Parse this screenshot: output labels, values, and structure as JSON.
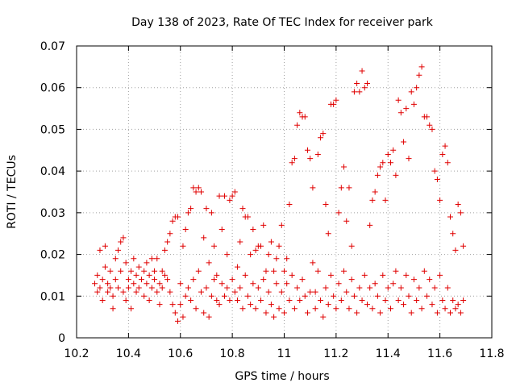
{
  "chart_data": {
    "type": "scatter",
    "title": "Day 138 of 2023, Rate Of TEC Index for receiver park",
    "xlabel": "GPS time / hours",
    "ylabel": "ROTI / TECUs",
    "xlim": [
      10.2,
      11.8
    ],
    "ylim": [
      0,
      0.07
    ],
    "xticks": [
      10.2,
      10.4,
      10.6,
      10.8,
      11.0,
      11.2,
      11.4,
      11.6,
      11.8
    ],
    "xtick_labels": [
      "10.2",
      "10.4",
      "10.6",
      "10.8",
      "11",
      "11.2",
      "11.4",
      "11.6",
      "11.8"
    ],
    "yticks": [
      0,
      0.01,
      0.02,
      0.03,
      0.04,
      0.05,
      0.06,
      0.07
    ],
    "ytick_labels": [
      "0",
      "0.01",
      "0.02",
      "0.03",
      "0.04",
      "0.05",
      "0.06",
      "0.07"
    ],
    "grid": true,
    "marker": "plus",
    "series": [
      {
        "name": "ROTI",
        "color": "#e00000",
        "points": [
          [
            10.27,
            0.013
          ],
          [
            10.28,
            0.011
          ],
          [
            10.28,
            0.015
          ],
          [
            10.29,
            0.021
          ],
          [
            10.29,
            0.012
          ],
          [
            10.3,
            0.014
          ],
          [
            10.3,
            0.009
          ],
          [
            10.31,
            0.022
          ],
          [
            10.31,
            0.017
          ],
          [
            10.32,
            0.013
          ],
          [
            10.32,
            0.011
          ],
          [
            10.33,
            0.012
          ],
          [
            10.33,
            0.016
          ],
          [
            10.34,
            0.007
          ],
          [
            10.34,
            0.01
          ],
          [
            10.35,
            0.019
          ],
          [
            10.35,
            0.014
          ],
          [
            10.36,
            0.021
          ],
          [
            10.36,
            0.012
          ],
          [
            10.37,
            0.023
          ],
          [
            10.37,
            0.016
          ],
          [
            10.38,
            0.024
          ],
          [
            10.38,
            0.011
          ],
          [
            10.39,
            0.018
          ],
          [
            10.39,
            0.009
          ],
          [
            10.4,
            0.014
          ],
          [
            10.4,
            0.012
          ],
          [
            10.41,
            0.007
          ],
          [
            10.41,
            0.016
          ],
          [
            10.42,
            0.013
          ],
          [
            10.42,
            0.019
          ],
          [
            10.43,
            0.015
          ],
          [
            10.43,
            0.011
          ],
          [
            10.44,
            0.017
          ],
          [
            10.44,
            0.012
          ],
          [
            10.45,
            0.014
          ],
          [
            10.46,
            0.01
          ],
          [
            10.46,
            0.016
          ],
          [
            10.47,
            0.018
          ],
          [
            10.47,
            0.013
          ],
          [
            10.48,
            0.009
          ],
          [
            10.48,
            0.015
          ],
          [
            10.49,
            0.019
          ],
          [
            10.49,
            0.012
          ],
          [
            10.5,
            0.016
          ],
          [
            10.5,
            0.014
          ],
          [
            10.51,
            0.011
          ],
          [
            10.51,
            0.019
          ],
          [
            10.52,
            0.008
          ],
          [
            10.52,
            0.013
          ],
          [
            10.53,
            0.016
          ],
          [
            10.53,
            0.012
          ],
          [
            10.54,
            0.021
          ],
          [
            10.54,
            0.015
          ],
          [
            10.55,
            0.023
          ],
          [
            10.55,
            0.014
          ],
          [
            10.56,
            0.025
          ],
          [
            10.56,
            0.011
          ],
          [
            10.57,
            0.028
          ],
          [
            10.57,
            0.008
          ],
          [
            10.58,
            0.029
          ],
          [
            10.58,
            0.006
          ],
          [
            10.59,
            0.029
          ],
          [
            10.59,
            0.004
          ],
          [
            10.6,
            0.013
          ],
          [
            10.6,
            0.008
          ],
          [
            10.61,
            0.022
          ],
          [
            10.61,
            0.005
          ],
          [
            10.62,
            0.026
          ],
          [
            10.62,
            0.01
          ],
          [
            10.63,
            0.03
          ],
          [
            10.63,
            0.012
          ],
          [
            10.64,
            0.031
          ],
          [
            10.64,
            0.009
          ],
          [
            10.65,
            0.036
          ],
          [
            10.65,
            0.014
          ],
          [
            10.66,
            0.035
          ],
          [
            10.66,
            0.007
          ],
          [
            10.67,
            0.036
          ],
          [
            10.67,
            0.016
          ],
          [
            10.68,
            0.035
          ],
          [
            10.68,
            0.011
          ],
          [
            10.69,
            0.024
          ],
          [
            10.69,
            0.006
          ],
          [
            10.7,
            0.031
          ],
          [
            10.7,
            0.012
          ],
          [
            10.71,
            0.018
          ],
          [
            10.71,
            0.005
          ],
          [
            10.72,
            0.03
          ],
          [
            10.72,
            0.01
          ],
          [
            10.73,
            0.014
          ],
          [
            10.73,
            0.022
          ],
          [
            10.74,
            0.009
          ],
          [
            10.74,
            0.015
          ],
          [
            10.75,
            0.034
          ],
          [
            10.75,
            0.008
          ],
          [
            10.76,
            0.026
          ],
          [
            10.76,
            0.013
          ],
          [
            10.77,
            0.034
          ],
          [
            10.77,
            0.01
          ],
          [
            10.78,
            0.02
          ],
          [
            10.78,
            0.012
          ],
          [
            10.79,
            0.033
          ],
          [
            10.79,
            0.009
          ],
          [
            10.8,
            0.034
          ],
          [
            10.8,
            0.014
          ],
          [
            10.81,
            0.035
          ],
          [
            10.81,
            0.011
          ],
          [
            10.82,
            0.017
          ],
          [
            10.82,
            0.009
          ],
          [
            10.83,
            0.023
          ],
          [
            10.83,
            0.012
          ],
          [
            10.84,
            0.031
          ],
          [
            10.84,
            0.007
          ],
          [
            10.85,
            0.029
          ],
          [
            10.85,
            0.015
          ],
          [
            10.86,
            0.029
          ],
          [
            10.86,
            0.01
          ],
          [
            10.87,
            0.02
          ],
          [
            10.87,
            0.008
          ],
          [
            10.88,
            0.026
          ],
          [
            10.88,
            0.013
          ],
          [
            10.89,
            0.021
          ],
          [
            10.89,
            0.007
          ],
          [
            10.9,
            0.022
          ],
          [
            10.9,
            0.012
          ],
          [
            10.91,
            0.022
          ],
          [
            10.91,
            0.009
          ],
          [
            10.92,
            0.027
          ],
          [
            10.92,
            0.014
          ],
          [
            10.93,
            0.016
          ],
          [
            10.93,
            0.006
          ],
          [
            10.94,
            0.02
          ],
          [
            10.94,
            0.011
          ],
          [
            10.95,
            0.023
          ],
          [
            10.95,
            0.008
          ],
          [
            10.96,
            0.016
          ],
          [
            10.96,
            0.005
          ],
          [
            10.97,
            0.019
          ],
          [
            10.97,
            0.013
          ],
          [
            10.98,
            0.022
          ],
          [
            10.98,
            0.007
          ],
          [
            10.99,
            0.027
          ],
          [
            10.99,
            0.011
          ],
          [
            11.0,
            0.016
          ],
          [
            11.0,
            0.006
          ],
          [
            11.01,
            0.019
          ],
          [
            11.01,
            0.013
          ],
          [
            11.02,
            0.032
          ],
          [
            11.02,
            0.009
          ],
          [
            11.03,
            0.042
          ],
          [
            11.03,
            0.015
          ],
          [
            11.04,
            0.043
          ],
          [
            11.04,
            0.007
          ],
          [
            11.05,
            0.051
          ],
          [
            11.05,
            0.012
          ],
          [
            11.06,
            0.054
          ],
          [
            11.06,
            0.009
          ],
          [
            11.07,
            0.053
          ],
          [
            11.07,
            0.014
          ],
          [
            11.08,
            0.053
          ],
          [
            11.08,
            0.01
          ],
          [
            11.09,
            0.045
          ],
          [
            11.09,
            0.006
          ],
          [
            11.1,
            0.043
          ],
          [
            11.1,
            0.011
          ],
          [
            11.11,
            0.036
          ],
          [
            11.11,
            0.018
          ],
          [
            11.12,
            0.011
          ],
          [
            11.12,
            0.007
          ],
          [
            11.13,
            0.044
          ],
          [
            11.13,
            0.016
          ],
          [
            11.14,
            0.048
          ],
          [
            11.14,
            0.009
          ],
          [
            11.15,
            0.049
          ],
          [
            11.15,
            0.005
          ],
          [
            11.16,
            0.032
          ],
          [
            11.16,
            0.012
          ],
          [
            11.17,
            0.025
          ],
          [
            11.17,
            0.008
          ],
          [
            11.18,
            0.056
          ],
          [
            11.18,
            0.015
          ],
          [
            11.19,
            0.056
          ],
          [
            11.19,
            0.01
          ],
          [
            11.2,
            0.057
          ],
          [
            11.2,
            0.007
          ],
          [
            11.21,
            0.03
          ],
          [
            11.21,
            0.013
          ],
          [
            11.22,
            0.036
          ],
          [
            11.22,
            0.009
          ],
          [
            11.23,
            0.041
          ],
          [
            11.23,
            0.016
          ],
          [
            11.24,
            0.028
          ],
          [
            11.24,
            0.011
          ],
          [
            11.25,
            0.036
          ],
          [
            11.25,
            0.007
          ],
          [
            11.26,
            0.022
          ],
          [
            11.26,
            0.014
          ],
          [
            11.27,
            0.059
          ],
          [
            11.27,
            0.01
          ],
          [
            11.28,
            0.061
          ],
          [
            11.28,
            0.006
          ],
          [
            11.29,
            0.059
          ],
          [
            11.29,
            0.012
          ],
          [
            11.3,
            0.064
          ],
          [
            11.3,
            0.009
          ],
          [
            11.31,
            0.06
          ],
          [
            11.31,
            0.015
          ],
          [
            11.32,
            0.061
          ],
          [
            11.32,
            0.008
          ],
          [
            11.33,
            0.027
          ],
          [
            11.33,
            0.012
          ],
          [
            11.34,
            0.033
          ],
          [
            11.34,
            0.007
          ],
          [
            11.35,
            0.035
          ],
          [
            11.35,
            0.013
          ],
          [
            11.36,
            0.039
          ],
          [
            11.36,
            0.01
          ],
          [
            11.37,
            0.041
          ],
          [
            11.37,
            0.006
          ],
          [
            11.38,
            0.042
          ],
          [
            11.38,
            0.015
          ],
          [
            11.39,
            0.033
          ],
          [
            11.39,
            0.009
          ],
          [
            11.4,
            0.044
          ],
          [
            11.4,
            0.012
          ],
          [
            11.41,
            0.042
          ],
          [
            11.41,
            0.007
          ],
          [
            11.42,
            0.045
          ],
          [
            11.42,
            0.013
          ],
          [
            11.43,
            0.039
          ],
          [
            11.43,
            0.016
          ],
          [
            11.44,
            0.057
          ],
          [
            11.44,
            0.009
          ],
          [
            11.45,
            0.054
          ],
          [
            11.45,
            0.012
          ],
          [
            11.46,
            0.047
          ],
          [
            11.46,
            0.008
          ],
          [
            11.47,
            0.055
          ],
          [
            11.47,
            0.015
          ],
          [
            11.48,
            0.043
          ],
          [
            11.48,
            0.01
          ],
          [
            11.49,
            0.059
          ],
          [
            11.49,
            0.006
          ],
          [
            11.5,
            0.056
          ],
          [
            11.5,
            0.014
          ],
          [
            11.51,
            0.06
          ],
          [
            11.51,
            0.009
          ],
          [
            11.52,
            0.063
          ],
          [
            11.52,
            0.012
          ],
          [
            11.53,
            0.065
          ],
          [
            11.53,
            0.007
          ],
          [
            11.54,
            0.053
          ],
          [
            11.54,
            0.016
          ],
          [
            11.55,
            0.053
          ],
          [
            11.55,
            0.01
          ],
          [
            11.56,
            0.051
          ],
          [
            11.56,
            0.014
          ],
          [
            11.57,
            0.05
          ],
          [
            11.57,
            0.008
          ],
          [
            11.58,
            0.04
          ],
          [
            11.58,
            0.012
          ],
          [
            11.59,
            0.038
          ],
          [
            11.59,
            0.006
          ],
          [
            11.6,
            0.033
          ],
          [
            11.6,
            0.015
          ],
          [
            11.61,
            0.044
          ],
          [
            11.61,
            0.009
          ],
          [
            11.62,
            0.046
          ],
          [
            11.62,
            0.007
          ],
          [
            11.63,
            0.042
          ],
          [
            11.63,
            0.012
          ],
          [
            11.64,
            0.029
          ],
          [
            11.64,
            0.006
          ],
          [
            11.65,
            0.025
          ],
          [
            11.65,
            0.009
          ],
          [
            11.66,
            0.021
          ],
          [
            11.66,
            0.007
          ],
          [
            11.67,
            0.032
          ],
          [
            11.67,
            0.008
          ],
          [
            11.68,
            0.03
          ],
          [
            11.68,
            0.006
          ],
          [
            11.69,
            0.022
          ],
          [
            11.69,
            0.009
          ]
        ]
      }
    ]
  }
}
